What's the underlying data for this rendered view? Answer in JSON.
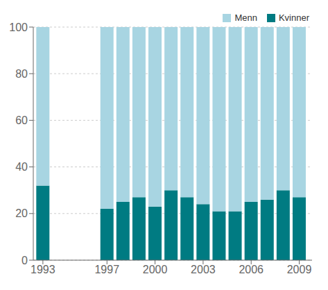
{
  "chart_data": {
    "type": "bar",
    "stacked": true,
    "x": [
      1993,
      1997,
      1998,
      1999,
      2000,
      2001,
      2002,
      2003,
      2004,
      2005,
      2006,
      2007,
      2008,
      2009
    ],
    "series": [
      {
        "name": "Kvinner",
        "color": "#007b82",
        "values": [
          32,
          22,
          25,
          27,
          23,
          30,
          27,
          24,
          21,
          21,
          25,
          26,
          30,
          27
        ]
      },
      {
        "name": "Menn",
        "color": "#a8d5e2",
        "values": [
          68,
          78,
          75,
          73,
          77,
          70,
          73,
          76,
          79,
          79,
          75,
          74,
          70,
          73
        ]
      }
    ],
    "xlim": [
      1992.4,
      2009.8
    ],
    "xticks": [
      1993,
      1997,
      2000,
      2003,
      2006,
      2009
    ],
    "ylim": [
      0,
      100
    ],
    "yticks": [
      0,
      20,
      40,
      60,
      80,
      100
    ],
    "grid": true,
    "legend": "upper right"
  }
}
